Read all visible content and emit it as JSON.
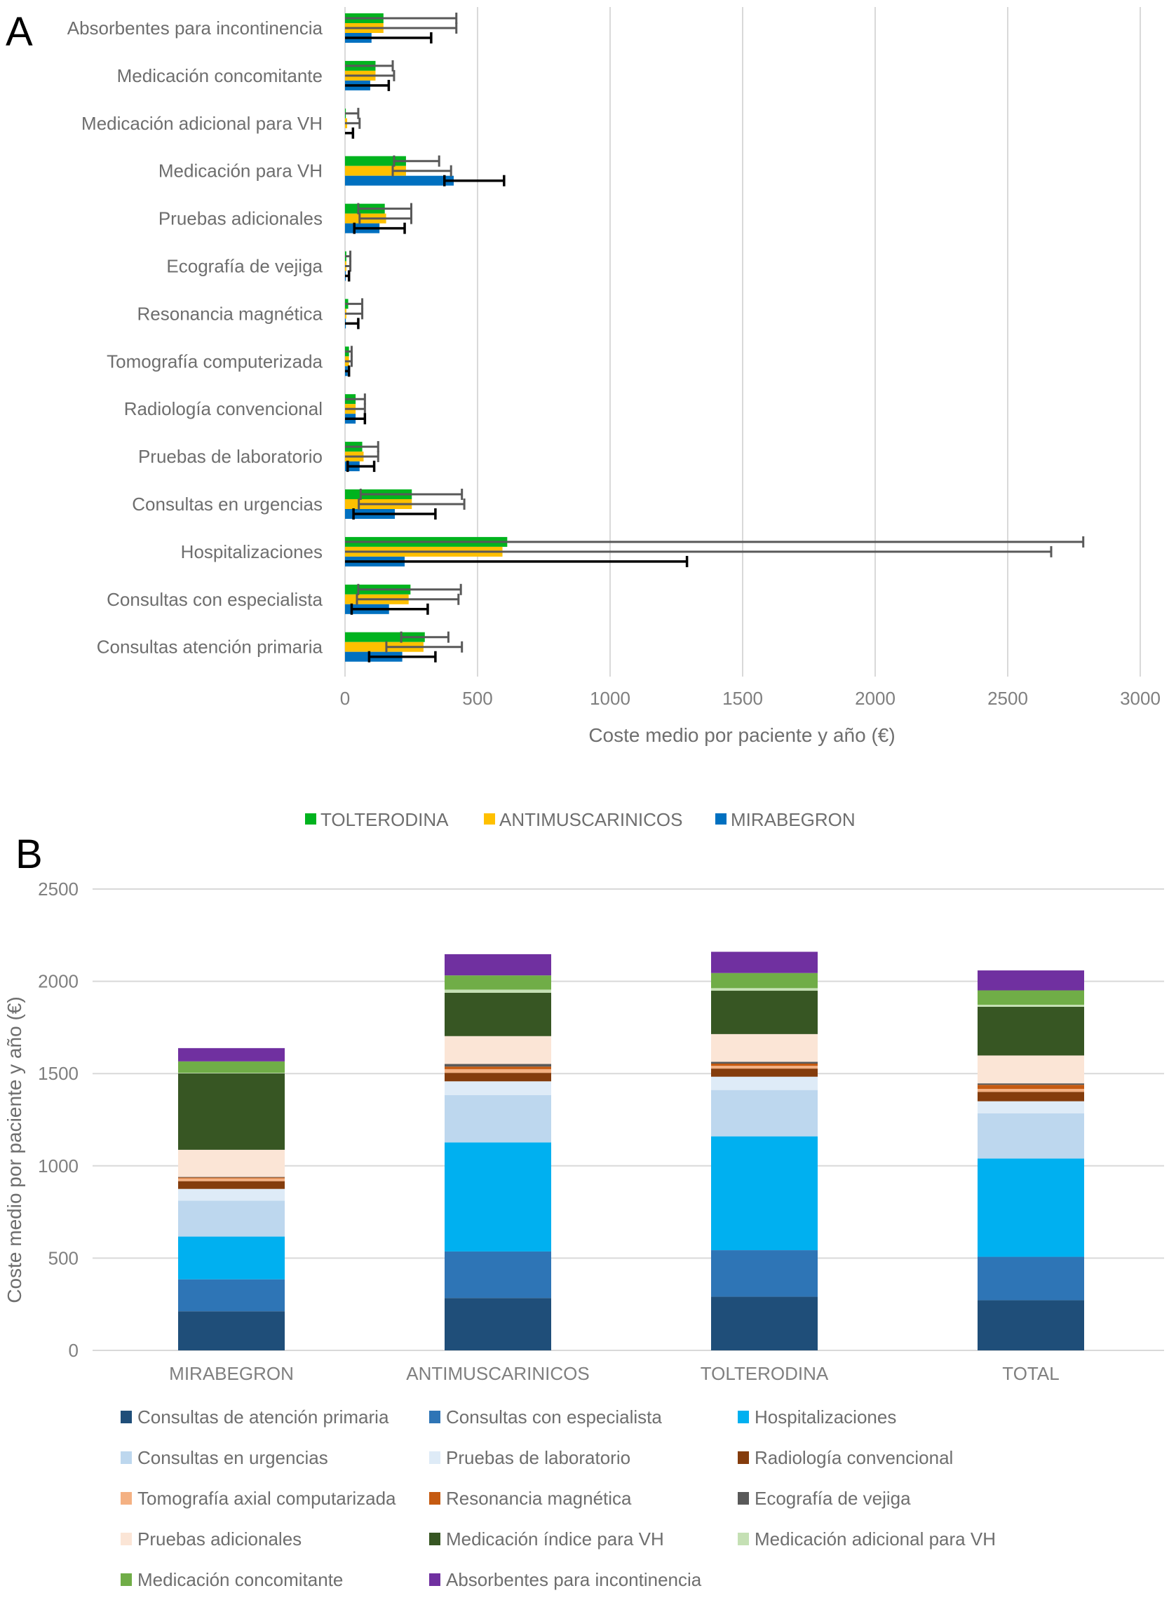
{
  "chart_data": [
    {
      "type": "bar",
      "orientation": "horizontal",
      "panel_label": "A",
      "title": "",
      "xlabel": "Coste medio por paciente y año  (€)",
      "ylabel": "",
      "xlim": [
        0,
        3000
      ],
      "xticks": [
        "0",
        "500",
        "1000",
        "1500",
        "2000",
        "2500",
        "3000"
      ],
      "grid": true,
      "legend_position": "bottom",
      "categories": [
        "Absorbentes para incontinencia",
        "Medicación concomitante",
        "Medicación adicional para VH",
        "Medicación para VH",
        "Pruebas adicionales",
        "Ecografía de vejiga",
        "Resonancia magnética",
        "Tomografía computerizada",
        "Radiología convencional",
        "Pruebas de laboratorio",
        "Consultas en urgencias",
        "Hospitalizaciones",
        "Consultas con especialista",
        "Consultas atención primaria"
      ],
      "series": [
        {
          "name": "TOLTERODINA",
          "color": "#00b31e",
          "values": [
            145,
            115,
            3,
            230,
            150,
            5,
            12,
            15,
            40,
            65,
            252,
            612,
            247,
            301
          ],
          "error_low": [
            0,
            0,
            0,
            185,
            50,
            0,
            0,
            0,
            0,
            0,
            59,
            0,
            50,
            212
          ],
          "error_high": [
            420,
            180,
            50,
            355,
            250,
            20,
            65,
            25,
            75,
            125,
            441,
            2785,
            437,
            390
          ]
        },
        {
          "name": "ANTIMUSCARINICOS",
          "color": "#ffc000",
          "values": [
            145,
            115,
            8,
            230,
            155,
            5,
            5,
            15,
            40,
            70,
            252,
            594,
            240,
            296
          ],
          "error_low": [
            0,
            0,
            0,
            180,
            55,
            0,
            0,
            0,
            0,
            0,
            52,
            0,
            45,
            156
          ],
          "error_high": [
            420,
            185,
            55,
            400,
            250,
            20,
            65,
            25,
            75,
            125,
            450,
            2664,
            428,
            441
          ]
        },
        {
          "name": "MIRABEGRON",
          "color": "#0070c0",
          "values": [
            100,
            95,
            0,
            410,
            130,
            3,
            3,
            10,
            40,
            55,
            188,
            225,
            166,
            216
          ],
          "error_low": [
            0,
            0,
            0,
            375,
            35,
            0,
            0,
            0,
            0,
            10,
            32,
            0,
            25,
            91
          ],
          "error_high": [
            325,
            165,
            30,
            600,
            225,
            15,
            50,
            15,
            75,
            110,
            341,
            1290,
            312,
            341
          ]
        }
      ]
    },
    {
      "type": "bar",
      "orientation": "vertical",
      "stacked": true,
      "panel_label": "B",
      "title": "",
      "xlabel": "",
      "ylabel": "Coste medio por paciente y año (€)",
      "ylim": [
        0,
        2500
      ],
      "yticks": [
        "0",
        "500",
        "1000",
        "1500",
        "2000",
        "2500"
      ],
      "grid": true,
      "legend_position": "bottom",
      "categories": [
        "MIRABEGRON",
        "ANTIMUSCARINICOS",
        "TOLTERODINA",
        "TOTAL"
      ],
      "series": [
        {
          "name": "Consultas de atención primaria",
          "color": "#1f4e79",
          "values": [
            212,
            284,
            291,
            272
          ]
        },
        {
          "name": "Consultas con especialista",
          "color": "#2e75b6",
          "values": [
            173,
            252,
            252,
            235
          ]
        },
        {
          "name": "Hospitalizaciones",
          "color": "#00b0f0",
          "values": [
            232,
            591,
            617,
            533
          ]
        },
        {
          "name": "Consultas en urgencias",
          "color": "#bdd7ee",
          "values": [
            194,
            256,
            251,
            245
          ]
        },
        {
          "name": "Pruebas de laboratorio",
          "color": "#deebf7",
          "values": [
            64,
            75,
            72,
            65
          ]
        },
        {
          "name": "Radiología convencional",
          "color": "#843c0c",
          "values": [
            42,
            46,
            44,
            51
          ]
        },
        {
          "name": "Tomografía axial computarizada",
          "color": "#f4b183",
          "values": [
            15,
            20,
            15,
            16
          ]
        },
        {
          "name": "Resonancia magnética",
          "color": "#c55a11",
          "values": [
            5,
            14,
            12,
            22
          ]
        },
        {
          "name": "Ecografía de vejiga",
          "color": "#595959",
          "values": [
            3,
            14,
            10,
            8
          ]
        },
        {
          "name": "Pruebas adicionales",
          "color": "#fbe5d6",
          "values": [
            147,
            151,
            150,
            151
          ]
        },
        {
          "name": "Medicación índice para VH",
          "color": "#375623",
          "values": [
            414,
            235,
            235,
            264
          ]
        },
        {
          "name": "Medicación adicional para VH",
          "color": "#c5e0b4",
          "values": [
            3,
            17,
            14,
            11
          ]
        },
        {
          "name": "Medicación concomitante",
          "color": "#70ad47",
          "values": [
            62,
            77,
            82,
            78
          ]
        },
        {
          "name": "Absorbentes para incontinencia",
          "color": "#7030a0",
          "values": [
            72,
            115,
            115,
            108
          ]
        }
      ]
    }
  ]
}
